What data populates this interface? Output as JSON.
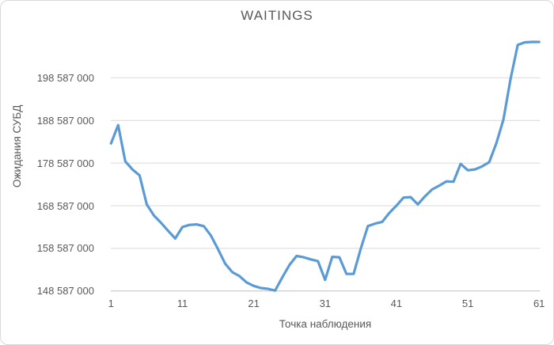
{
  "chart_data": {
    "type": "line",
    "title": "WAITINGS",
    "xlabel": "Точка наблюдения",
    "ylabel": "Ожидания СУБД",
    "legend": "none",
    "grid": true,
    "xlim": [
      1,
      61
    ],
    "ylim": [
      148587000,
      208587000
    ],
    "xticks": [
      1,
      11,
      21,
      31,
      41,
      51,
      61
    ],
    "ytick_values": [
      148587000,
      158587000,
      168587000,
      178587000,
      188587000,
      198587000
    ],
    "ytick_labels": [
      "148 587 000",
      "158 587 000",
      "168 587 000",
      "178 587 000",
      "188 587 000",
      "198 587 000"
    ],
    "series": [
      {
        "name": "WAITINGS",
        "x": [
          1,
          2,
          3,
          4,
          5,
          6,
          7,
          8,
          9,
          10,
          11,
          12,
          13,
          14,
          15,
          16,
          17,
          18,
          19,
          20,
          21,
          22,
          23,
          24,
          25,
          26,
          27,
          28,
          29,
          30,
          31,
          32,
          33,
          34,
          35,
          36,
          37,
          38,
          39,
          40,
          41,
          42,
          43,
          44,
          45,
          46,
          47,
          48,
          49,
          50,
          51,
          52,
          53,
          54,
          55,
          56,
          57,
          58,
          59,
          60,
          61
        ],
        "values": [
          183200000,
          187500000,
          179000000,
          177100000,
          175700000,
          168900000,
          166300000,
          164600000,
          162700000,
          160900000,
          163600000,
          164100000,
          164200000,
          163800000,
          161600000,
          158400000,
          155000000,
          153000000,
          152100000,
          150600000,
          149800000,
          149300000,
          149100000,
          148700000,
          151800000,
          154700000,
          156800000,
          156500000,
          156000000,
          155600000,
          151200000,
          156600000,
          156500000,
          152600000,
          152600000,
          158500000,
          163800000,
          164400000,
          164800000,
          166900000,
          168600000,
          170500000,
          170600000,
          168900000,
          170800000,
          172400000,
          173300000,
          174300000,
          174200000,
          178400000,
          176900000,
          177100000,
          177800000,
          178800000,
          183200000,
          188800000,
          198300000,
          206300000,
          206900000,
          207000000,
          207000000
        ]
      }
    ],
    "colors": {
      "line": "#5B9BD5",
      "gridline": "#D9D9D9",
      "axis_line": "#BFBFBF",
      "axis_text": "#595959",
      "title_text": "#595959",
      "background": "#FFFFFF",
      "border": "#D9D9D9"
    }
  }
}
